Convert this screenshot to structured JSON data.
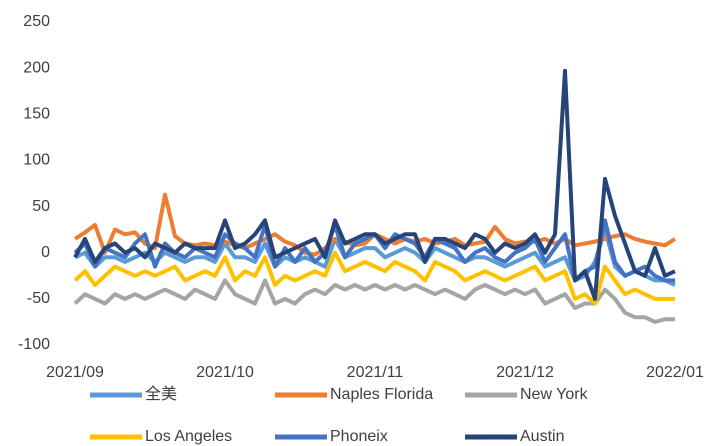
{
  "chart_data": {
    "type": "line",
    "categories": [
      "2021/09",
      null,
      null,
      null,
      null,
      null,
      null,
      null,
      null,
      null,
      null,
      null,
      null,
      null,
      null,
      "2021/10",
      null,
      null,
      null,
      null,
      null,
      null,
      null,
      null,
      null,
      null,
      null,
      null,
      null,
      null,
      "2021/11",
      null,
      null,
      null,
      null,
      null,
      null,
      null,
      null,
      null,
      null,
      null,
      null,
      null,
      null,
      "2021/12",
      null,
      null,
      null,
      null,
      null,
      null,
      null,
      null,
      null,
      null,
      null,
      null,
      null,
      null,
      "2022/01"
    ],
    "series": [
      {
        "name": "全美",
        "color": "#5b9bd5",
        "values": [
          -5,
          0,
          -15,
          -5,
          -5,
          -10,
          -5,
          0,
          -10,
          0,
          -5,
          -10,
          -5,
          -5,
          -10,
          10,
          -5,
          -5,
          -10,
          10,
          -15,
          -5,
          -10,
          -5,
          -10,
          -15,
          15,
          -5,
          0,
          5,
          5,
          -5,
          0,
          5,
          0,
          -10,
          5,
          0,
          -5,
          -10,
          -5,
          -5,
          -10,
          -15,
          -10,
          -5,
          0,
          -15,
          -10,
          -5,
          -30,
          -25,
          -10,
          25,
          -15,
          -25,
          -20,
          -25,
          -30,
          -30,
          -35
        ]
      },
      {
        "name": "Naples Florida",
        "color": "#ed7d31",
        "values": [
          15,
          22,
          30,
          0,
          25,
          20,
          22,
          10,
          5,
          63,
          18,
          10,
          8,
          10,
          8,
          12,
          8,
          5,
          10,
          15,
          20,
          12,
          8,
          0,
          -2,
          5,
          15,
          12,
          8,
          10,
          20,
          15,
          10,
          15,
          12,
          15,
          10,
          12,
          15,
          8,
          10,
          12,
          28,
          15,
          10,
          12,
          12,
          15,
          10,
          15,
          8,
          10,
          12,
          15,
          18,
          20,
          15,
          12,
          10,
          8,
          15
        ]
      },
      {
        "name": "New York",
        "color": "#a5a5a5",
        "values": [
          -55,
          -45,
          -50,
          -55,
          -45,
          -50,
          -45,
          -50,
          -45,
          -40,
          -45,
          -50,
          -40,
          -45,
          -50,
          -30,
          -45,
          -50,
          -55,
          -30,
          -55,
          -50,
          -55,
          -45,
          -40,
          -45,
          -35,
          -40,
          -35,
          -40,
          -35,
          -40,
          -35,
          -40,
          -35,
          -40,
          -45,
          -40,
          -45,
          -50,
          -40,
          -35,
          -40,
          -45,
          -40,
          -45,
          -40,
          -55,
          -50,
          -45,
          -60,
          -55,
          -55,
          -40,
          -50,
          -65,
          -70,
          -70,
          -75,
          -72,
          -72
        ]
      },
      {
        "name": "Los Angeles",
        "color": "#ffc000",
        "values": [
          -30,
          -20,
          -35,
          -25,
          -15,
          -20,
          -25,
          -20,
          -25,
          -20,
          -15,
          -30,
          -25,
          -20,
          -25,
          -5,
          -30,
          -20,
          -25,
          -5,
          -35,
          -25,
          -30,
          -25,
          -20,
          -25,
          0,
          -20,
          -15,
          -10,
          -15,
          -20,
          -10,
          -15,
          -20,
          -30,
          -10,
          -15,
          -20,
          -30,
          -25,
          -20,
          -25,
          -30,
          -25,
          -20,
          -15,
          -30,
          -25,
          -20,
          -50,
          -45,
          -55,
          -15,
          -30,
          -45,
          -40,
          -45,
          -50,
          -50,
          -50
        ]
      },
      {
        "name": "Phoneix",
        "color": "#4472c4",
        "values": [
          0,
          10,
          -15,
          5,
          0,
          -5,
          10,
          20,
          -15,
          10,
          0,
          -5,
          5,
          0,
          -5,
          20,
          10,
          5,
          -5,
          30,
          -15,
          5,
          -10,
          5,
          -10,
          0,
          30,
          -5,
          10,
          15,
          20,
          5,
          20,
          15,
          10,
          -5,
          15,
          10,
          5,
          -10,
          0,
          5,
          -5,
          -10,
          0,
          5,
          15,
          -10,
          5,
          20,
          -30,
          -20,
          -15,
          35,
          -10,
          -25,
          -20,
          -15,
          -25,
          -30,
          -30
        ]
      },
      {
        "name": "Austin",
        "color": "#264478",
        "values": [
          -5,
          15,
          -10,
          5,
          10,
          0,
          5,
          -5,
          10,
          5,
          0,
          10,
          5,
          5,
          5,
          35,
          5,
          10,
          20,
          35,
          -5,
          0,
          5,
          10,
          15,
          -5,
          35,
          10,
          15,
          20,
          20,
          10,
          15,
          20,
          20,
          -10,
          15,
          15,
          10,
          5,
          20,
          15,
          0,
          10,
          5,
          10,
          20,
          0,
          20,
          197,
          -30,
          -20,
          -50,
          80,
          40,
          10,
          -20,
          -25,
          5,
          -25,
          -20
        ]
      }
    ],
    "ylim": [
      -100,
      250
    ],
    "yticks": [
      -100,
      -50,
      0,
      50,
      100,
      150,
      200,
      250
    ]
  }
}
